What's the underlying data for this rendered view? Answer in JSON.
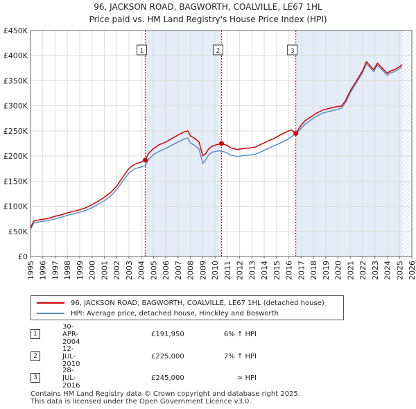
{
  "chart_data": {
    "type": "line",
    "title": "96, JACKSON ROAD, BAGWORTH, COALVILLE, LE67 1HL",
    "subtitle": "Price paid vs. HM Land Registry's House Price Index (HPI)",
    "xlim": [
      1995,
      2026
    ],
    "ylim": [
      0,
      450000
    ],
    "yticks": [
      0,
      50000,
      100000,
      150000,
      200000,
      250000,
      300000,
      350000,
      400000,
      450000
    ],
    "ytick_labels": [
      "£0",
      "£50K",
      "£100K",
      "£150K",
      "£200K",
      "£250K",
      "£300K",
      "£350K",
      "£400K",
      "£450K"
    ],
    "xticks": [
      1995,
      1996,
      1997,
      1998,
      1999,
      2000,
      2001,
      2002,
      2003,
      2004,
      2005,
      2006,
      2007,
      2008,
      2009,
      2010,
      2011,
      2012,
      2013,
      2014,
      2015,
      2016,
      2017,
      2018,
      2019,
      2020,
      2021,
      2022,
      2023,
      2024,
      2025,
      2026
    ],
    "data_end": 2025.25,
    "grid": true,
    "series": [
      {
        "name": "96, JACKSON ROAD, BAGWORTH, COALVILLE, LE67 1HL (detached house)",
        "color": "#cc0000",
        "x": [
          1995.0,
          1995.25,
          1995.5,
          1996.0,
          1996.5,
          1997.0,
          1997.5,
          1998.0,
          1998.5,
          1999.0,
          1999.5,
          2000.0,
          2000.5,
          2001.0,
          2001.5,
          2002.0,
          2002.5,
          2003.0,
          2003.5,
          2004.0,
          2004.33,
          2004.6,
          2005.0,
          2005.5,
          2006.0,
          2006.5,
          2007.0,
          2007.5,
          2007.8,
          2008.0,
          2008.3,
          2008.7,
          2009.0,
          2009.25,
          2009.5,
          2009.8,
          2010.2,
          2010.53,
          2010.9,
          2011.3,
          2011.8,
          2012.3,
          2012.8,
          2013.3,
          2013.8,
          2014.3,
          2014.8,
          2015.3,
          2015.8,
          2016.2,
          2016.57,
          2016.9,
          2017.3,
          2017.8,
          2018.3,
          2018.8,
          2019.3,
          2019.8,
          2020.3,
          2020.6,
          2021.0,
          2021.5,
          2022.0,
          2022.3,
          2022.6,
          2022.9,
          2023.2,
          2023.6,
          2024.0,
          2024.3,
          2024.6,
          2025.0,
          2025.2
        ],
        "y": [
          57000,
          70000,
          72000,
          74000,
          76000,
          80000,
          83000,
          87000,
          90000,
          93000,
          97000,
          103000,
          110000,
          118000,
          127000,
          140000,
          158000,
          175000,
          184000,
          188000,
          191950,
          205000,
          215000,
          223000,
          228000,
          235000,
          242000,
          248000,
          250000,
          240000,
          236000,
          228000,
          200000,
          205000,
          215000,
          220000,
          223000,
          225000,
          222000,
          216000,
          213000,
          215000,
          216000,
          218000,
          224000,
          230000,
          235000,
          242000,
          248000,
          252000,
          245000,
          258000,
          270000,
          278000,
          286000,
          292000,
          295000,
          298000,
          300000,
          310000,
          330000,
          350000,
          370000,
          388000,
          380000,
          372000,
          385000,
          375000,
          365000,
          370000,
          372000,
          378000,
          382000
        ]
      },
      {
        "name": "HPI: Average price, detached house, Hinckley and Bosworth",
        "color": "#5a8ec4",
        "x": [
          1995.0,
          1995.25,
          1995.5,
          1996.0,
          1996.5,
          1997.0,
          1997.5,
          1998.0,
          1998.5,
          1999.0,
          1999.5,
          2000.0,
          2000.5,
          2001.0,
          2001.5,
          2002.0,
          2002.5,
          2003.0,
          2003.5,
          2004.0,
          2004.33,
          2004.6,
          2005.0,
          2005.5,
          2006.0,
          2006.5,
          2007.0,
          2007.5,
          2007.8,
          2008.0,
          2008.3,
          2008.7,
          2009.0,
          2009.25,
          2009.5,
          2009.8,
          2010.2,
          2010.53,
          2010.9,
          2011.3,
          2011.8,
          2012.3,
          2012.8,
          2013.3,
          2013.8,
          2014.3,
          2014.8,
          2015.3,
          2015.8,
          2016.2,
          2016.57,
          2016.9,
          2017.3,
          2017.8,
          2018.3,
          2018.8,
          2019.3,
          2019.8,
          2020.3,
          2020.6,
          2021.0,
          2021.5,
          2022.0,
          2022.3,
          2022.6,
          2022.9,
          2023.2,
          2023.6,
          2024.0,
          2024.3,
          2024.6,
          2025.0,
          2025.2
        ],
        "y": [
          54000,
          66000,
          68000,
          70000,
          72000,
          75000,
          78000,
          82000,
          85000,
          88000,
          92000,
          97000,
          104000,
          111000,
          120000,
          133000,
          150000,
          166000,
          175000,
          178000,
          181000,
          193000,
          203000,
          210000,
          215000,
          222000,
          228000,
          234000,
          236000,
          226000,
          222000,
          214000,
          185000,
          193000,
          203000,
          208000,
          210000,
          210000,
          207000,
          202000,
          199000,
          201000,
          202000,
          204000,
          209000,
          215000,
          220000,
          226000,
          232000,
          238000,
          245000,
          252000,
          263000,
          272000,
          280000,
          286000,
          289000,
          292000,
          296000,
          306000,
          326000,
          346000,
          366000,
          384000,
          376000,
          368000,
          381000,
          371000,
          361000,
          366000,
          368000,
          374000,
          378000
        ]
      }
    ],
    "annotations": [
      {
        "label": "1",
        "x": 2004.33,
        "y": 191950
      },
      {
        "label": "2",
        "x": 2010.53,
        "y": 225000
      },
      {
        "label": "3",
        "x": 2016.57,
        "y": 245000
      }
    ]
  },
  "legend": {
    "property_label": "96, JACKSON ROAD, BAGWORTH, COALVILLE, LE67 1HL (detached house)",
    "hpi_label": "HPI: Average price, detached house, Hinckley and Bosworth"
  },
  "transactions": [
    {
      "num": "1",
      "date": "30-APR-2004",
      "price": "£191,950",
      "hpi": "6% ↑ HPI"
    },
    {
      "num": "2",
      "date": "12-JUL-2010",
      "price": "£225,000",
      "hpi": "7% ↑ HPI"
    },
    {
      "num": "3",
      "date": "28-JUL-2016",
      "price": "£245,000",
      "hpi": "≈ HPI"
    }
  ],
  "footer": {
    "line1": "Contains HM Land Registry data © Crown copyright and database right 2025.",
    "line2": "This data is licensed under the Open Government Licence v3.0."
  },
  "colors": {
    "property": "#cc0000",
    "hpi": "#5a8ec4",
    "grid": "#dcdcdc",
    "band": "#e4ecf7"
  }
}
